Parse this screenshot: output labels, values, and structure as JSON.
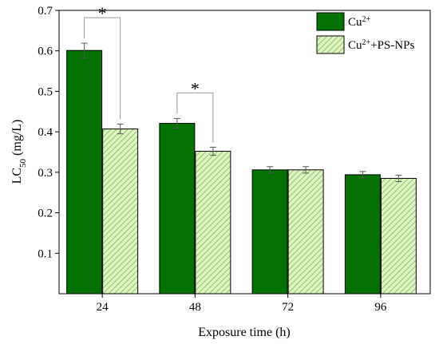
{
  "chart_data": {
    "type": "bar",
    "xlabel": "Exposure time (h)",
    "ylabel": {
      "main": "LC",
      "sub": "50",
      "unit": " (mg/L)"
    },
    "categories": [
      "24",
      "48",
      "72",
      "96"
    ],
    "ylim": [
      0,
      0.7
    ],
    "yticks": [
      "0.1",
      "0.2",
      "0.3",
      "0.4",
      "0.5",
      "0.6",
      "0.7"
    ],
    "grid": false,
    "legend_position": "top-right",
    "series": [
      {
        "name": "Cu",
        "name_sup": "2+",
        "name_suffix": "",
        "pattern": "solid",
        "color": "#037203",
        "values": [
          0.601,
          0.421,
          0.306,
          0.294
        ],
        "errors": [
          0.018,
          0.012,
          0.008,
          0.008
        ]
      },
      {
        "name": "Cu",
        "name_sup": "2+",
        "name_suffix": "+PS-NPs",
        "pattern": "hatched",
        "color": "#e0f5c4",
        "hatch_color": "#8cc46a",
        "values": [
          0.407,
          0.352,
          0.306,
          0.285
        ],
        "errors": [
          0.012,
          0.01,
          0.008,
          0.008
        ]
      }
    ],
    "significance": [
      {
        "category_index": 0,
        "label": "*"
      },
      {
        "category_index": 1,
        "label": "*"
      }
    ]
  }
}
